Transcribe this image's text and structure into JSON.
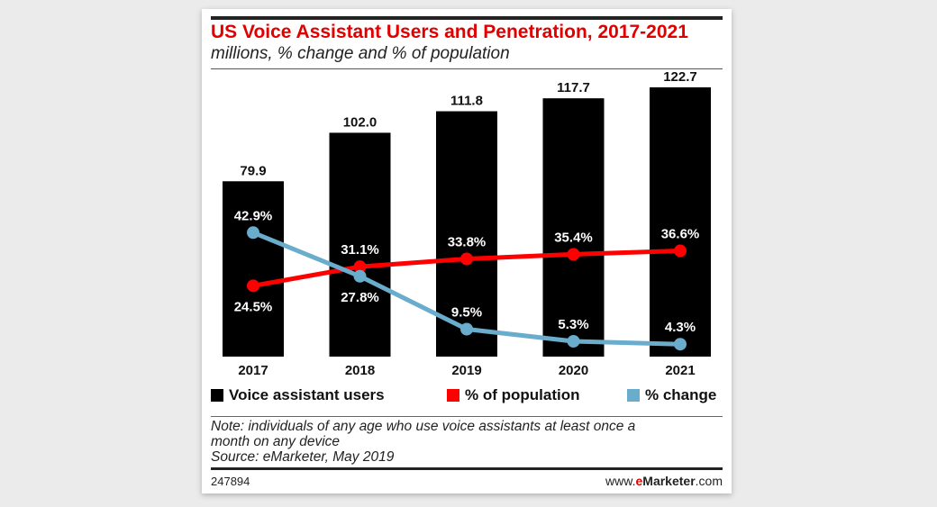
{
  "chart_data": {
    "type": "bar",
    "title": "US Voice Assistant Users and Penetration, 2017-2021",
    "subtitle": "millions, % change and % of population",
    "categories": [
      "2017",
      "2018",
      "2019",
      "2020",
      "2021"
    ],
    "series": [
      {
        "name": "Voice assistant users",
        "type": "bar",
        "color": "#000000",
        "values": [
          79.9,
          102.0,
          111.8,
          117.7,
          122.7
        ],
        "labels": [
          "79.9",
          "102.0",
          "111.8",
          "117.7",
          "122.7"
        ]
      },
      {
        "name": "% of population",
        "type": "line",
        "color": "#ff0000",
        "values": [
          24.5,
          31.1,
          33.8,
          35.4,
          36.6
        ],
        "labels": [
          "24.5%",
          "31.1%",
          "33.8%",
          "35.4%",
          "36.6%"
        ]
      },
      {
        "name": "% change",
        "type": "line",
        "color": "#6aaccc",
        "values": [
          42.9,
          27.8,
          9.5,
          5.3,
          4.3
        ],
        "labels": [
          "42.9%",
          "27.8%",
          "9.5%",
          "5.3%",
          "4.3%"
        ]
      }
    ],
    "legend_position": "bottom",
    "grid": false
  },
  "note_lines": [
    "Note: individuals of any age who use voice assistants at least once a",
    "month on any device",
    "Source: eMarketer, May 2019"
  ],
  "footer": {
    "id": "247894",
    "brand_prefix": "www.",
    "brand_e": "e",
    "brand_main": "Marketer",
    ".com": ".com",
    "brand_suffix": ".com"
  }
}
